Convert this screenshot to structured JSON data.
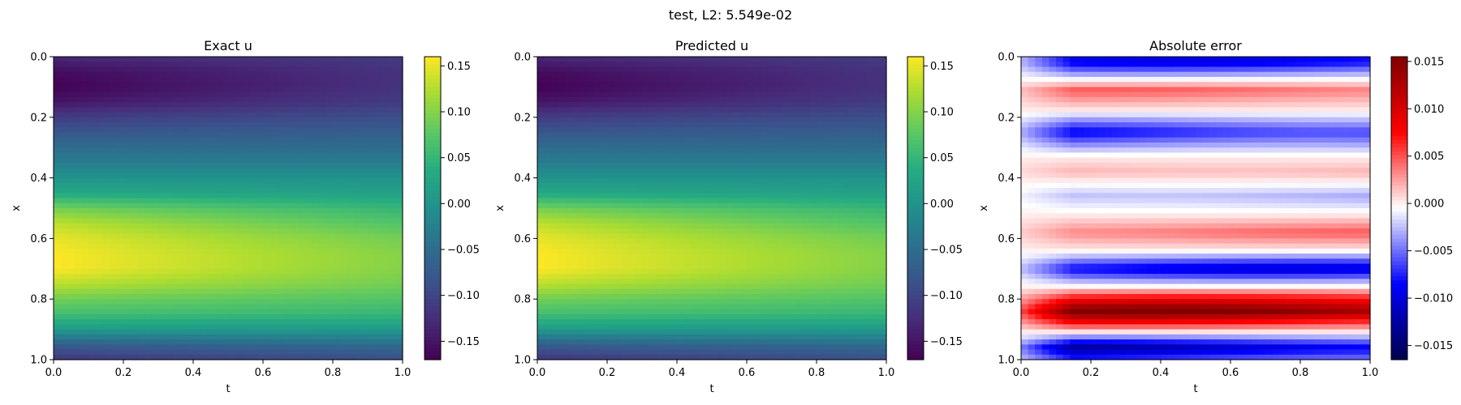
{
  "figure": {
    "suptitle": "test, L2: 5.549e-02"
  },
  "chart_data": [
    {
      "type": "heatmap",
      "title": "Exact u",
      "xlabel": "t",
      "ylabel": "x",
      "xlim": [
        0.0,
        1.0
      ],
      "ylim": [
        1.0,
        0.0
      ],
      "x_ticks": [
        "0.0",
        "0.2",
        "0.4",
        "0.6",
        "0.8",
        "1.0"
      ],
      "y_ticks": [
        "0.0",
        "0.2",
        "0.4",
        "0.6",
        "0.8",
        "1.0"
      ],
      "colormap": "viridis",
      "colorbar": {
        "range": [
          -0.17,
          0.16
        ],
        "ticks": [
          0.15,
          0.1,
          0.05,
          0.0,
          -0.05,
          -0.1,
          -0.15
        ],
        "tick_labels": [
          "0.15",
          "0.10",
          "0.05",
          "0.00",
          "−0.05",
          "−0.10",
          "−0.15"
        ]
      },
      "profile_x": [
        0.0,
        0.05,
        0.1,
        0.15,
        0.2,
        0.25,
        0.3,
        0.35,
        0.4,
        0.45,
        0.5,
        0.55,
        0.6,
        0.65,
        0.7,
        0.75,
        0.8,
        0.85,
        0.9,
        0.95,
        1.0
      ],
      "profile_t0": [
        -0.13,
        -0.16,
        -0.17,
        -0.15,
        -0.11,
        -0.08,
        -0.05,
        -0.03,
        0.0,
        0.03,
        0.09,
        0.13,
        0.15,
        0.16,
        0.16,
        0.13,
        0.09,
        0.06,
        0.01,
        -0.07,
        -0.12
      ],
      "profile_t1": [
        -0.11,
        -0.12,
        -0.12,
        -0.11,
        -0.09,
        -0.07,
        -0.05,
        -0.03,
        0.0,
        0.02,
        0.05,
        0.07,
        0.09,
        0.1,
        0.1,
        0.09,
        0.07,
        0.05,
        0.01,
        -0.05,
        -0.09
      ]
    },
    {
      "type": "heatmap",
      "title": "Predicted u",
      "xlabel": "t",
      "ylabel": "x",
      "xlim": [
        0.0,
        1.0
      ],
      "ylim": [
        1.0,
        0.0
      ],
      "x_ticks": [
        "0.0",
        "0.2",
        "0.4",
        "0.6",
        "0.8",
        "1.0"
      ],
      "y_ticks": [
        "0.0",
        "0.2",
        "0.4",
        "0.6",
        "0.8",
        "1.0"
      ],
      "colormap": "viridis",
      "colorbar": {
        "range": [
          -0.17,
          0.16
        ],
        "ticks": [
          0.15,
          0.1,
          0.05,
          0.0,
          -0.05,
          -0.1,
          -0.15
        ],
        "tick_labels": [
          "0.15",
          "0.10",
          "0.05",
          "0.00",
          "−0.05",
          "−0.10",
          "−0.15"
        ]
      },
      "profile_x": [
        0.0,
        0.05,
        0.1,
        0.15,
        0.2,
        0.25,
        0.3,
        0.35,
        0.4,
        0.45,
        0.5,
        0.55,
        0.6,
        0.65,
        0.7,
        0.75,
        0.8,
        0.85,
        0.9,
        0.95,
        1.0
      ],
      "profile_t0": [
        -0.13,
        -0.16,
        -0.17,
        -0.15,
        -0.11,
        -0.08,
        -0.05,
        -0.03,
        0.0,
        0.03,
        0.09,
        0.13,
        0.15,
        0.16,
        0.16,
        0.13,
        0.09,
        0.06,
        0.01,
        -0.07,
        -0.12
      ],
      "profile_t1": [
        -0.11,
        -0.12,
        -0.12,
        -0.11,
        -0.09,
        -0.07,
        -0.05,
        -0.03,
        0.0,
        0.02,
        0.05,
        0.07,
        0.09,
        0.1,
        0.1,
        0.09,
        0.07,
        0.05,
        0.01,
        -0.05,
        -0.09
      ]
    },
    {
      "type": "heatmap",
      "title": "Absolute error",
      "xlabel": "t",
      "ylabel": "x",
      "xlim": [
        0.0,
        1.0
      ],
      "ylim": [
        1.0,
        0.0
      ],
      "x_ticks": [
        "0.0",
        "0.2",
        "0.4",
        "0.6",
        "0.8",
        "1.0"
      ],
      "y_ticks": [
        "0.0",
        "0.2",
        "0.4",
        "0.6",
        "0.8",
        "1.0"
      ],
      "colormap": "seismic",
      "colorbar": {
        "range": [
          -0.0165,
          0.0155
        ],
        "ticks": [
          0.015,
          0.01,
          0.005,
          0.0,
          -0.005,
          -0.01,
          -0.015
        ],
        "tick_labels": [
          "0.015",
          "0.010",
          "0.005",
          "0.000",
          "−0.005",
          "−0.010",
          "−0.015"
        ]
      },
      "bands": [
        {
          "x": 0.02,
          "value": -0.008
        },
        {
          "x": 0.11,
          "value": 0.004
        },
        {
          "x": 0.18,
          "value": 0.0
        },
        {
          "x": 0.25,
          "value": -0.008
        },
        {
          "x": 0.33,
          "value": 0.0
        },
        {
          "x": 0.38,
          "value": 0.002
        },
        {
          "x": 0.46,
          "value": -0.003
        },
        {
          "x": 0.52,
          "value": 0.0
        },
        {
          "x": 0.58,
          "value": 0.004
        },
        {
          "x": 0.64,
          "value": 0.0
        },
        {
          "x": 0.7,
          "value": -0.009
        },
        {
          "x": 0.76,
          "value": 0.0
        },
        {
          "x": 0.84,
          "value": 0.014
        },
        {
          "x": 0.91,
          "value": 0.0
        },
        {
          "x": 0.96,
          "value": -0.011
        },
        {
          "x": 1.0,
          "value": -0.006
        }
      ]
    }
  ]
}
